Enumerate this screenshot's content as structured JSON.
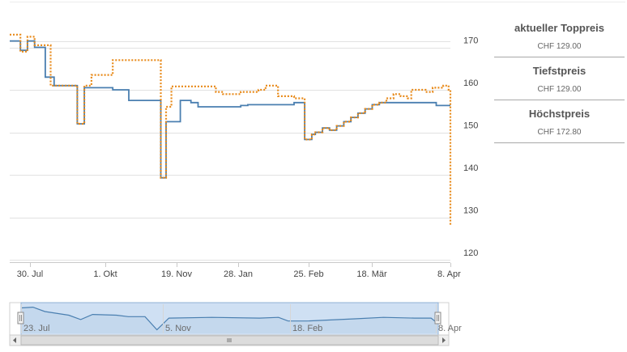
{
  "chart_data": {
    "type": "line",
    "x_labels": [
      "30. Jul",
      "1. Okt",
      "19. Nov",
      "28. Jan",
      "25. Feb",
      "18. Mär",
      "8. Apr"
    ],
    "y_ticks": [
      120,
      130,
      140,
      150,
      160,
      170
    ],
    "ylim": [
      120,
      180
    ],
    "grid": true,
    "series": [
      {
        "color": "#4a7fb0",
        "style": "solid",
        "points": [
          [
            0.0,
            171.5
          ],
          [
            3.0,
            169.3
          ],
          [
            5.0,
            171.5
          ],
          [
            7.0,
            170.0
          ],
          [
            10.0,
            163.0
          ],
          [
            12.5,
            161.0
          ],
          [
            19.0,
            152.0
          ],
          [
            21.0,
            160.5
          ],
          [
            29.0,
            160.0
          ],
          [
            33.5,
            157.5
          ],
          [
            41.0,
            157.5
          ],
          [
            42.5,
            139.3
          ],
          [
            44.0,
            152.5
          ],
          [
            48.0,
            157.5
          ],
          [
            51.0,
            157.0
          ],
          [
            53.0,
            156.0
          ],
          [
            59.0,
            156.0
          ],
          [
            65.0,
            156.3
          ],
          [
            67.0,
            156.5
          ],
          [
            76.0,
            156.5
          ],
          [
            80.0,
            157.0
          ],
          [
            83.0,
            148.3
          ],
          [
            85.0,
            149.5
          ],
          [
            86.0,
            150.0
          ],
          [
            88.0,
            151.0
          ],
          [
            90.0,
            150.5
          ],
          [
            92.0,
            151.5
          ],
          [
            94.0,
            152.5
          ],
          [
            96.0,
            153.5
          ],
          [
            98.0,
            154.5
          ],
          [
            100.0,
            155.5
          ],
          [
            102.0,
            156.5
          ],
          [
            104.0,
            157.0
          ],
          [
            108.0,
            157.0
          ],
          [
            116.0,
            157.0
          ],
          [
            120.0,
            156.3
          ],
          [
            124.0,
            156.3
          ]
        ]
      },
      {
        "color": "#e88a1a",
        "style": "dotted",
        "points": [
          [
            0.0,
            173.0
          ],
          [
            3.0,
            169.0
          ],
          [
            5.0,
            172.5
          ],
          [
            7.0,
            170.5
          ],
          [
            11.5,
            161.0
          ],
          [
            19.0,
            152.0
          ],
          [
            21.0,
            161.0
          ],
          [
            23.0,
            163.5
          ],
          [
            27.5,
            163.5
          ],
          [
            29.0,
            167.0
          ],
          [
            41.5,
            167.0
          ],
          [
            42.5,
            139.3
          ],
          [
            44.0,
            156.0
          ],
          [
            45.5,
            160.8
          ],
          [
            55.0,
            160.8
          ],
          [
            58.0,
            159.5
          ],
          [
            60.0,
            159.0
          ],
          [
            65.0,
            159.5
          ],
          [
            70.0,
            160.0
          ],
          [
            72.0,
            161.0
          ],
          [
            74.0,
            161.0
          ],
          [
            75.5,
            158.5
          ],
          [
            80.0,
            158.0
          ],
          [
            83.0,
            148.3
          ],
          [
            85.0,
            149.5
          ],
          [
            86.0,
            150.0
          ],
          [
            88.0,
            151.0
          ],
          [
            90.0,
            150.5
          ],
          [
            92.0,
            151.5
          ],
          [
            94.0,
            152.5
          ],
          [
            96.0,
            153.5
          ],
          [
            98.0,
            154.5
          ],
          [
            100.0,
            155.5
          ],
          [
            102.0,
            156.5
          ],
          [
            104.0,
            157.0
          ],
          [
            106.0,
            158.0
          ],
          [
            108.0,
            159.0
          ],
          [
            110.0,
            158.5
          ],
          [
            112.0,
            158.0
          ],
          [
            113.0,
            160.0
          ],
          [
            117.0,
            159.5
          ],
          [
            119.0,
            160.5
          ],
          [
            122.0,
            161.0
          ],
          [
            123.5,
            160.0
          ],
          [
            124.0,
            128.0
          ]
        ]
      }
    ],
    "navigator": {
      "x_labels": [
        "23. Jul",
        "5. Nov",
        "18. Feb",
        "8. Apr"
      ],
      "values": [
        [
          0,
          170
        ],
        [
          5,
          171
        ],
        [
          10,
          165
        ],
        [
          20,
          160
        ],
        [
          25,
          154
        ],
        [
          30,
          161
        ],
        [
          40,
          160
        ],
        [
          45,
          158
        ],
        [
          52,
          158
        ],
        [
          57,
          140
        ],
        [
          62,
          156
        ],
        [
          80,
          157
        ],
        [
          100,
          156
        ],
        [
          108,
          157
        ],
        [
          112,
          152
        ],
        [
          120,
          152
        ],
        [
          140,
          155
        ],
        [
          152,
          157
        ],
        [
          165,
          156
        ],
        [
          172,
          156
        ],
        [
          175,
          148
        ]
      ]
    }
  },
  "stats": [
    {
      "title": "aktueller Toppreis",
      "value": "CHF 129.00"
    },
    {
      "title": "Tiefstpreis",
      "value": "CHF 129.00"
    },
    {
      "title": "Höchstpreis",
      "value": "CHF 172.80"
    }
  ]
}
